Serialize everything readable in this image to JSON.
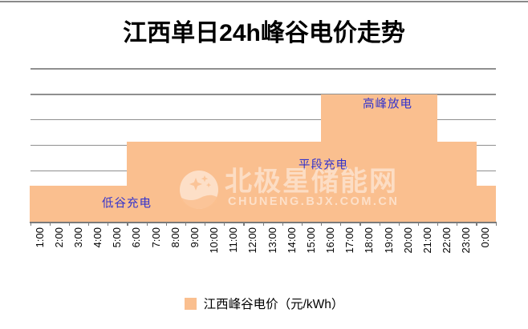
{
  "page": {
    "title": "江西单日24h峰谷电价走势"
  },
  "chart_data": {
    "type": "area-step",
    "title": "江西单日24h峰谷电价走势",
    "categories": [
      "1:00",
      "2:00",
      "3:00",
      "4:00",
      "5:00",
      "6:00",
      "7:00",
      "8:00",
      "9:00",
      "10:00",
      "11:00",
      "12:00",
      "13:00",
      "14:00",
      "15:00",
      "16:00",
      "17:00",
      "18:00",
      "19:00",
      "20:00",
      "21:00",
      "22:00",
      "23:00",
      "0:00"
    ],
    "values": [
      0.28,
      0.28,
      0.28,
      0.28,
      0.28,
      0.63,
      0.63,
      0.63,
      0.63,
      0.63,
      0.63,
      0.63,
      0.63,
      0.63,
      0.63,
      1.0,
      1.0,
      1.0,
      1.0,
      1.0,
      1.0,
      0.63,
      0.63,
      0.28
    ],
    "unit": "元/kWh",
    "ylim": [
      0,
      1.2
    ],
    "grid_step": 0.2,
    "grid_on": true,
    "series_color": "#FABF8F",
    "gridline_color": "#8f8f8f",
    "annotation_color": "#3333CC",
    "annotations": [
      {
        "text": "低谷充电",
        "x": 158,
        "y": 253
      },
      {
        "text": "平段充电",
        "x": 403,
        "y": 205
      },
      {
        "text": "高峰放电",
        "x": 483,
        "y": 129
      }
    ],
    "legend": {
      "label": "江西峰谷电价（元/kWh）",
      "position": "bottom"
    }
  },
  "watermark": {
    "brand": "北极星储能网",
    "url": "CHUNENG.BJX.COM.CN"
  }
}
